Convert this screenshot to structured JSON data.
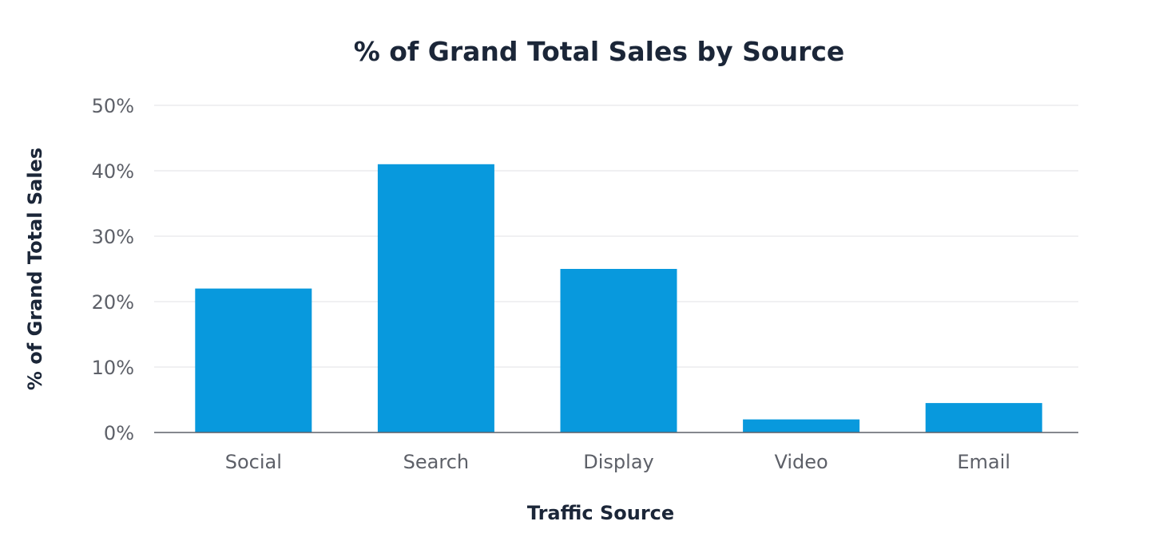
{
  "chart_data": {
    "type": "bar",
    "title": "% of Grand Total Sales by Source",
    "xlabel": "Traffic Source",
    "ylabel": "% of Grand Total Sales",
    "categories": [
      "Social",
      "Search",
      "Display",
      "Video",
      "Email"
    ],
    "values": [
      22,
      41,
      25,
      2,
      4.5
    ],
    "ylim": [
      0,
      50
    ],
    "yticks": [
      0,
      10,
      20,
      30,
      40,
      50
    ],
    "ytick_labels": [
      "0%",
      "10%",
      "20%",
      "30%",
      "40%",
      "50%"
    ],
    "grid": true,
    "legend": "none",
    "bar_color": "#0899dd"
  }
}
